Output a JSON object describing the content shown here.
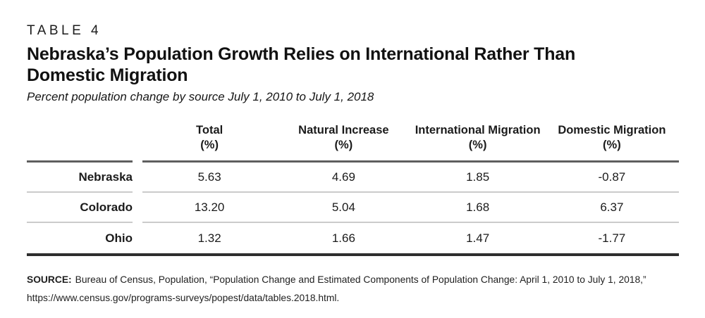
{
  "colors": {
    "text": "#1b1b1b",
    "rule_header": "#5f5f5f",
    "rule_row": "#cbcbcb",
    "rule_bottom": "#2e2e2e",
    "page_bg": "#ffffff"
  },
  "header": {
    "eyebrow": "TABLE 4",
    "title_lines": [
      "Nebraska’s Population Growth Relies on International Rather Than",
      "Domestic Migration"
    ],
    "subtitle": "Percent population change by source July 1, 2010 to July 1, 2018"
  },
  "table": {
    "columns": [
      {
        "label": "Total",
        "unit": "(%)"
      },
      {
        "label": "Natural Increase",
        "unit": "(%)"
      },
      {
        "label": "International Migration",
        "unit": "(%)"
      },
      {
        "label": "Domestic Migration",
        "unit": "(%)"
      }
    ],
    "rows": [
      {
        "label": "Nebraska",
        "values": [
          "5.63",
          "4.69",
          "1.85",
          "-0.87"
        ]
      },
      {
        "label": "Colorado",
        "values": [
          "13.20",
          "5.04",
          "1.68",
          "6.37"
        ]
      },
      {
        "label": "Ohio",
        "values": [
          "1.32",
          "1.66",
          "1.47",
          "-1.77"
        ]
      }
    ]
  },
  "source": {
    "label": "SOURCE:",
    "text": "Bureau of Census, Population, “Population Change and Estimated Components of Population Change: April 1, 2010 to July 1, 2018,” https://www.census.gov/programs-surveys/popest/data/tables.2018.html."
  },
  "chart_data": {
    "type": "table",
    "title": "Nebraska’s Population Growth Relies on International Rather Than Domestic Migration",
    "subtitle": "Percent population change by source July 1, 2010 to July 1, 2018",
    "columns": [
      "Total (%)",
      "Natural Increase (%)",
      "International Migration (%)",
      "Domestic Migration (%)"
    ],
    "rows": [
      {
        "label": "Nebraska",
        "values": [
          5.63,
          4.69,
          1.85,
          -0.87
        ]
      },
      {
        "label": "Colorado",
        "values": [
          13.2,
          5.04,
          1.68,
          6.37
        ]
      },
      {
        "label": "Ohio",
        "values": [
          1.32,
          1.66,
          1.47,
          -1.77
        ]
      }
    ]
  }
}
